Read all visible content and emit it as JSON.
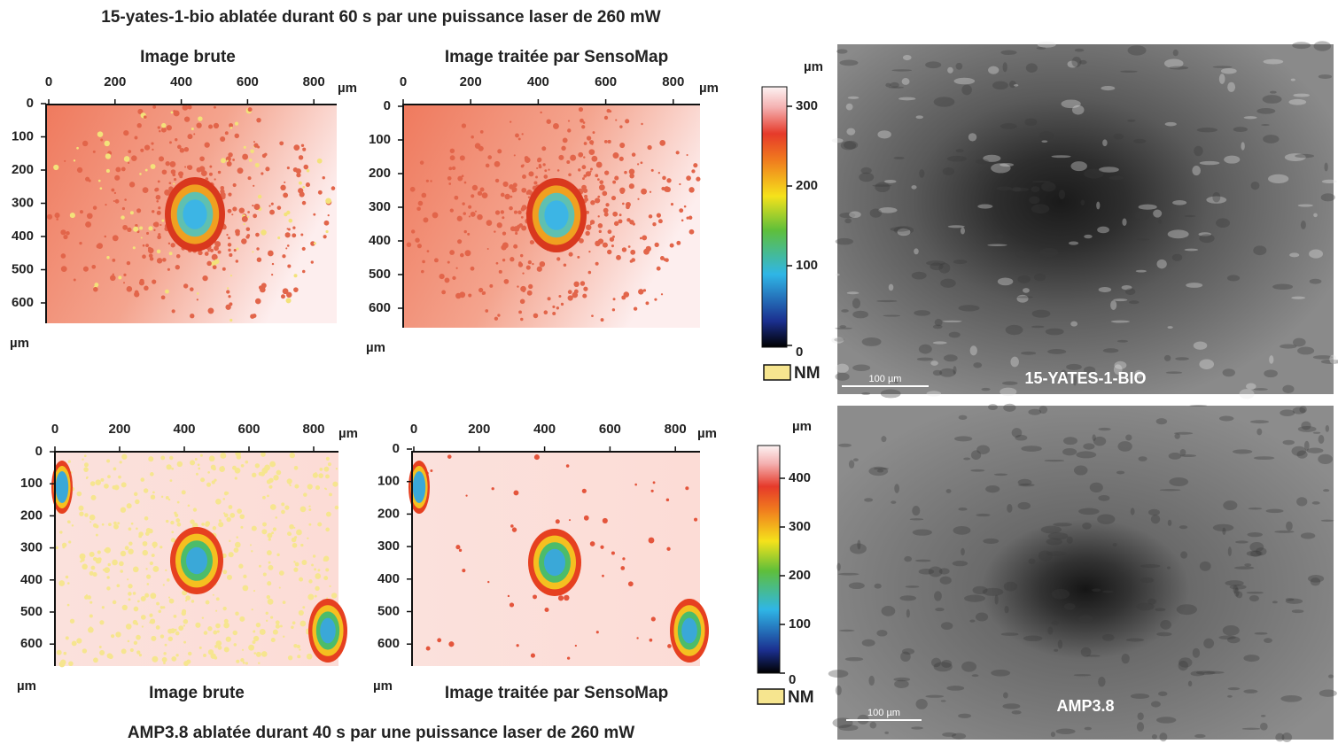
{
  "figures": [
    {
      "title": "15-yates-1-bio ablatée durant 60 s par une puissance laser de 260 mW",
      "panels": [
        {
          "title": "Image brute",
          "x_ticks": [
            0,
            200,
            400,
            600,
            800
          ],
          "y_ticks": [
            0,
            100,
            200,
            300,
            400,
            500,
            600
          ],
          "x_unit": "µm",
          "y_unit": "µm"
        },
        {
          "title": "Image traitée par SensoMap",
          "x_ticks": [
            0,
            200,
            400,
            600,
            800
          ],
          "y_ticks": [
            0,
            100,
            200,
            300,
            400,
            500,
            600
          ],
          "x_unit": "µm",
          "y_unit": "µm"
        }
      ],
      "colorbar": {
        "unit": "µm",
        "ticks": [
          0,
          100,
          200,
          300
        ],
        "nm": "NM"
      },
      "sem": {
        "label": "15-YATES-1-BIO",
        "scale": "100 µm"
      }
    },
    {
      "title": "AMP3.8 ablatée durant 40 s par une puissance laser de 260 mW",
      "panels": [
        {
          "title": "Image brute",
          "x_ticks": [
            0,
            200,
            400,
            600,
            800
          ],
          "y_ticks": [
            0,
            100,
            200,
            300,
            400,
            500,
            600
          ],
          "x_unit": "µm",
          "y_unit": "µm"
        },
        {
          "title": "Image traitée par SensoMap",
          "x_ticks": [
            0,
            200,
            400,
            600,
            800
          ],
          "y_ticks": [
            0,
            100,
            200,
            300,
            400,
            500,
            600
          ],
          "x_unit": "µm",
          "y_unit": "µm"
        }
      ],
      "colorbar": {
        "unit": "µm",
        "ticks": [
          0,
          100,
          200,
          300,
          400
        ],
        "nm": "NM"
      },
      "sem": {
        "label": "AMP3.8",
        "scale": "100 µm"
      }
    }
  ]
}
